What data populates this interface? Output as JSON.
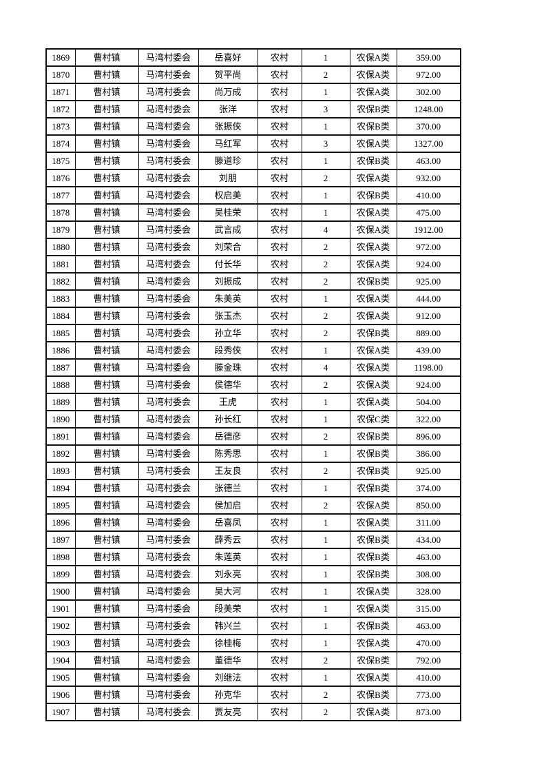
{
  "page": {
    "background_color": "#ffffff",
    "text_color": "#000000",
    "border_color": "#111111"
  },
  "table": {
    "column_keys": [
      "serial_number",
      "town",
      "village_committee",
      "person_name",
      "household_type",
      "person_count",
      "insurance_category",
      "amount"
    ],
    "rows": [
      [
        "1869",
        "曹村镇",
        "马湾村委会",
        "岳喜好",
        "农村",
        "1",
        "农保A类",
        "359.00"
      ],
      [
        "1870",
        "曹村镇",
        "马湾村委会",
        "贺平尚",
        "农村",
        "2",
        "农保A类",
        "972.00"
      ],
      [
        "1871",
        "曹村镇",
        "马湾村委会",
        "尚万成",
        "农村",
        "1",
        "农保A类",
        "302.00"
      ],
      [
        "1872",
        "曹村镇",
        "马湾村委会",
        "张洋",
        "农村",
        "3",
        "农保B类",
        "1248.00"
      ],
      [
        "1873",
        "曹村镇",
        "马湾村委会",
        "张振侠",
        "农村",
        "1",
        "农保B类",
        "370.00"
      ],
      [
        "1874",
        "曹村镇",
        "马湾村委会",
        "马红军",
        "农村",
        "3",
        "农保A类",
        "1327.00"
      ],
      [
        "1875",
        "曹村镇",
        "马湾村委会",
        "滕道珍",
        "农村",
        "1",
        "农保B类",
        "463.00"
      ],
      [
        "1876",
        "曹村镇",
        "马湾村委会",
        "刘朋",
        "农村",
        "2",
        "农保A类",
        "932.00"
      ],
      [
        "1877",
        "曹村镇",
        "马湾村委会",
        "权启美",
        "农村",
        "1",
        "农保B类",
        "410.00"
      ],
      [
        "1878",
        "曹村镇",
        "马湾村委会",
        "吴桂荣",
        "农村",
        "1",
        "农保A类",
        "475.00"
      ],
      [
        "1879",
        "曹村镇",
        "马湾村委会",
        "武言成",
        "农村",
        "4",
        "农保A类",
        "1912.00"
      ],
      [
        "1880",
        "曹村镇",
        "马湾村委会",
        "刘荣合",
        "农村",
        "2",
        "农保A类",
        "972.00"
      ],
      [
        "1881",
        "曹村镇",
        "马湾村委会",
        "付长华",
        "农村",
        "2",
        "农保A类",
        "924.00"
      ],
      [
        "1882",
        "曹村镇",
        "马湾村委会",
        "刘振成",
        "农村",
        "2",
        "农保B类",
        "925.00"
      ],
      [
        "1883",
        "曹村镇",
        "马湾村委会",
        "朱美英",
        "农村",
        "1",
        "农保A类",
        "444.00"
      ],
      [
        "1884",
        "曹村镇",
        "马湾村委会",
        "张玉杰",
        "农村",
        "2",
        "农保A类",
        "912.00"
      ],
      [
        "1885",
        "曹村镇",
        "马湾村委会",
        "孙立华",
        "农村",
        "2",
        "农保B类",
        "889.00"
      ],
      [
        "1886",
        "曹村镇",
        "马湾村委会",
        "段秀侠",
        "农村",
        "1",
        "农保A类",
        "439.00"
      ],
      [
        "1887",
        "曹村镇",
        "马湾村委会",
        "滕金珠",
        "农村",
        "4",
        "农保A类",
        "1198.00"
      ],
      [
        "1888",
        "曹村镇",
        "马湾村委会",
        "侯德华",
        "农村",
        "2",
        "农保A类",
        "924.00"
      ],
      [
        "1889",
        "曹村镇",
        "马湾村委会",
        "王虎",
        "农村",
        "1",
        "农保A类",
        "504.00"
      ],
      [
        "1890",
        "曹村镇",
        "马湾村委会",
        "孙长红",
        "农村",
        "1",
        "农保C类",
        "322.00"
      ],
      [
        "1891",
        "曹村镇",
        "马湾村委会",
        "岳德彦",
        "农村",
        "2",
        "农保B类",
        "896.00"
      ],
      [
        "1892",
        "曹村镇",
        "马湾村委会",
        "陈秀思",
        "农村",
        "1",
        "农保B类",
        "386.00"
      ],
      [
        "1893",
        "曹村镇",
        "马湾村委会",
        "王友良",
        "农村",
        "2",
        "农保B类",
        "925.00"
      ],
      [
        "1894",
        "曹村镇",
        "马湾村委会",
        "张德兰",
        "农村",
        "1",
        "农保B类",
        "374.00"
      ],
      [
        "1895",
        "曹村镇",
        "马湾村委会",
        "侯加启",
        "农村",
        "2",
        "农保A类",
        "850.00"
      ],
      [
        "1896",
        "曹村镇",
        "马湾村委会",
        "岳喜凤",
        "农村",
        "1",
        "农保A类",
        "311.00"
      ],
      [
        "1897",
        "曹村镇",
        "马湾村委会",
        "薛秀云",
        "农村",
        "1",
        "农保B类",
        "434.00"
      ],
      [
        "1898",
        "曹村镇",
        "马湾村委会",
        "朱莲英",
        "农村",
        "1",
        "农保B类",
        "463.00"
      ],
      [
        "1899",
        "曹村镇",
        "马湾村委会",
        "刘永亮",
        "农村",
        "1",
        "农保B类",
        "308.00"
      ],
      [
        "1900",
        "曹村镇",
        "马湾村委会",
        "吴大河",
        "农村",
        "1",
        "农保A类",
        "328.00"
      ],
      [
        "1901",
        "曹村镇",
        "马湾村委会",
        "段美荣",
        "农村",
        "1",
        "农保A类",
        "315.00"
      ],
      [
        "1902",
        "曹村镇",
        "马湾村委会",
        "韩兴兰",
        "农村",
        "1",
        "农保B类",
        "463.00"
      ],
      [
        "1903",
        "曹村镇",
        "马湾村委会",
        "徐桂梅",
        "农村",
        "1",
        "农保A类",
        "470.00"
      ],
      [
        "1904",
        "曹村镇",
        "马湾村委会",
        "董德华",
        "农村",
        "2",
        "农保B类",
        "792.00"
      ],
      [
        "1905",
        "曹村镇",
        "马湾村委会",
        "刘继法",
        "农村",
        "1",
        "农保A类",
        "410.00"
      ],
      [
        "1906",
        "曹村镇",
        "马湾村委会",
        "孙克华",
        "农村",
        "2",
        "农保B类",
        "773.00"
      ],
      [
        "1907",
        "曹村镇",
        "马湾村委会",
        "贾友亮",
        "农村",
        "2",
        "农保A类",
        "873.00"
      ]
    ]
  }
}
